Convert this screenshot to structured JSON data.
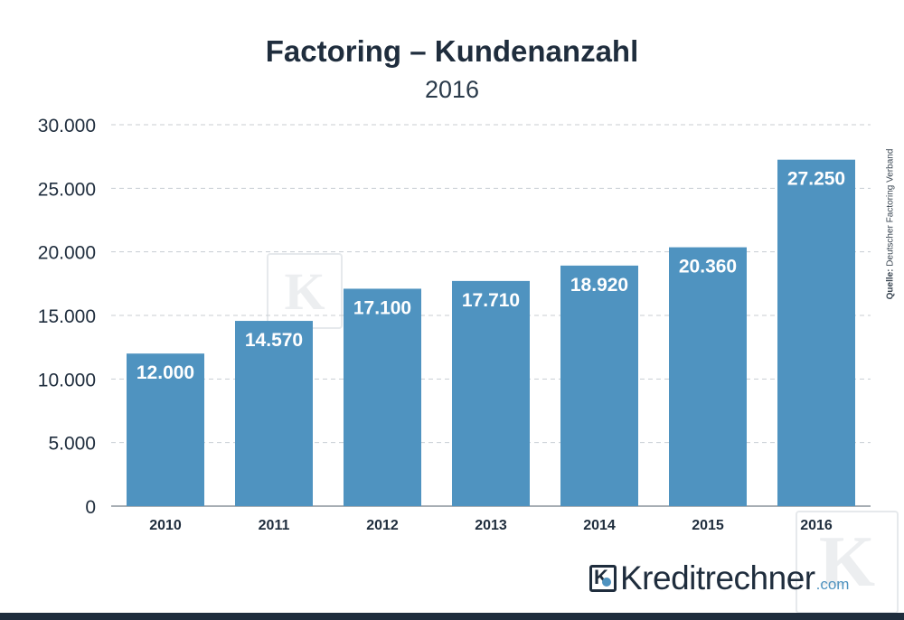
{
  "chart_data": {
    "type": "bar",
    "title": "Factoring – Kundenanzahl",
    "subtitle": "2016",
    "categories": [
      "2010",
      "2011",
      "2012",
      "2013",
      "2014",
      "2015",
      "2016"
    ],
    "values": [
      12000,
      14570,
      17100,
      17710,
      18920,
      20360,
      27250
    ],
    "value_labels": [
      "12.000",
      "14.570",
      "17.100",
      "17.710",
      "18.920",
      "20.360",
      "27.250"
    ],
    "yticks": [
      0,
      5000,
      10000,
      15000,
      20000,
      25000,
      30000
    ],
    "ytick_labels": [
      "0",
      "5.000",
      "10.000",
      "15.000",
      "20.000",
      "25.000",
      "30.000"
    ],
    "ylim": [
      0,
      30000
    ],
    "xlabel": "",
    "ylabel": "",
    "grid": true,
    "bar_color": "#4f93c0"
  },
  "source": {
    "label": "Quelle:",
    "text": "Deutscher Factoring Verband"
  },
  "brand": {
    "name": "Kreditrechner",
    "domain": ".com",
    "accent_color": "#4f93c0",
    "dark_color": "#1f2d3d"
  }
}
